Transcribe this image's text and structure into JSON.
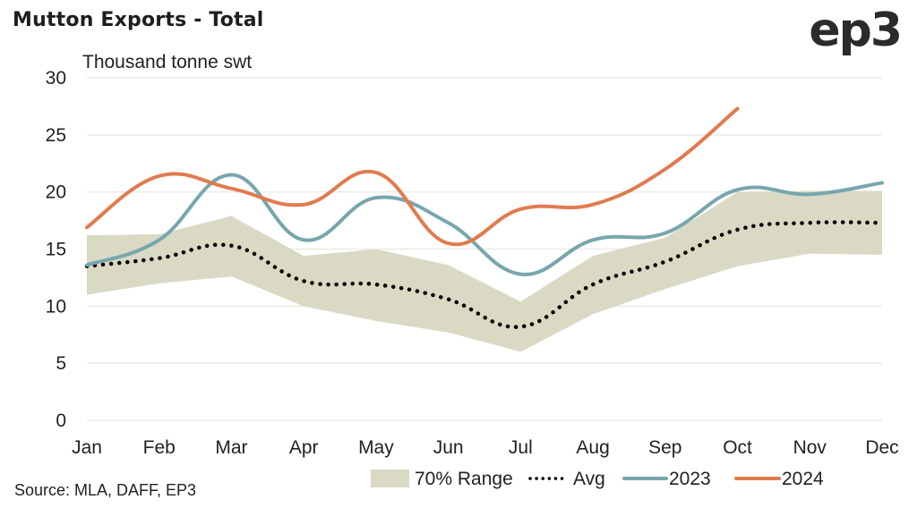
{
  "header": {
    "title": "Mutton Exports - Total",
    "logo": "ep3"
  },
  "footer": {
    "source": "Source: MLA, DAFF, EP3"
  },
  "chart_data": {
    "type": "line",
    "title": "Mutton Exports - Total",
    "xlabel": "",
    "ylabel": "Thousand tonne swt",
    "ylim": [
      0,
      30
    ],
    "yticks": [
      0,
      5,
      10,
      15,
      20,
      25,
      30
    ],
    "grid": true,
    "legend_position": "bottom-right",
    "categories": [
      "Jan",
      "Feb",
      "Mar",
      "Apr",
      "May",
      "Jun",
      "Jul",
      "Aug",
      "Sep",
      "Oct",
      "Nov",
      "Dec"
    ],
    "range": {
      "name": "70% Range",
      "color": "#d9d9c4",
      "upper": [
        16.2,
        16.3,
        17.9,
        14.4,
        15.0,
        13.6,
        10.4,
        14.4,
        16.0,
        20.0,
        20.1,
        20.1
      ],
      "lower": [
        11.0,
        12.0,
        12.6,
        10.0,
        8.7,
        7.7,
        6.0,
        9.3,
        11.5,
        13.5,
        14.6,
        14.5
      ]
    },
    "series": [
      {
        "name": "Avg",
        "style": "dotted",
        "color": "#000000",
        "values": [
          13.5,
          14.2,
          15.3,
          12.2,
          11.9,
          10.6,
          8.2,
          11.9,
          13.9,
          16.7,
          17.3,
          17.3
        ]
      },
      {
        "name": "2023",
        "style": "solid",
        "color": "#77a6ad",
        "values": [
          13.6,
          15.8,
          21.5,
          15.8,
          19.5,
          17.3,
          12.8,
          15.8,
          16.4,
          20.2,
          19.8,
          20.8
        ]
      },
      {
        "name": "2024",
        "style": "solid",
        "color": "#e07b4f",
        "values": [
          16.9,
          21.4,
          20.3,
          18.9,
          21.7,
          15.5,
          18.5,
          18.9,
          22.0,
          27.3,
          null,
          null
        ]
      }
    ],
    "legend": [
      "70% Range",
      "Avg",
      "2023",
      "2024"
    ]
  }
}
